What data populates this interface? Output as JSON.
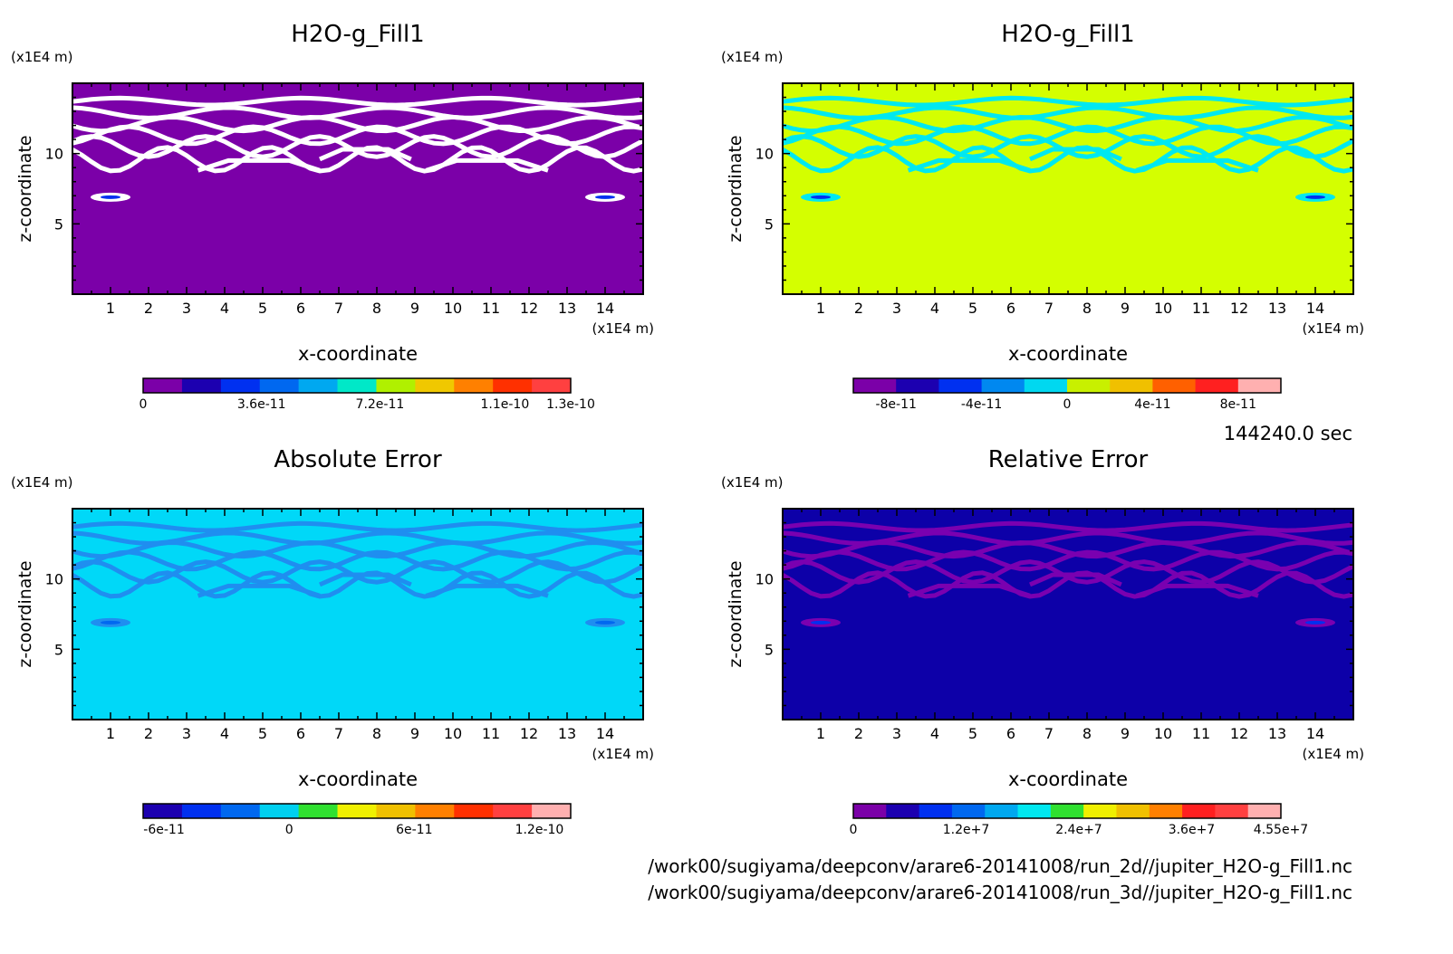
{
  "time_label": "144240.0 sec",
  "file_paths": [
    "/work00/sugiyama/deepconv/arare6-20141008/run_2d//jupiter_H2O-g_Fill1.nc",
    "/work00/sugiyama/deepconv/arare6-20141008/run_3d//jupiter_H2O-g_Fill1.nc"
  ],
  "chart_data": [
    {
      "type": "heatmap",
      "title": "H2O-g_Fill1",
      "xlabel": "x-coordinate",
      "ylabel": "z-coordinate",
      "x_unit": "(x1E4 m)",
      "y_unit": "(x1E4 m)",
      "xlim": [
        0,
        15
      ],
      "ylim": [
        0,
        15
      ],
      "x_ticks": [
        1,
        2,
        3,
        4,
        5,
        6,
        7,
        8,
        9,
        10,
        11,
        12,
        13,
        14
      ],
      "y_ticks": [
        5,
        10
      ],
      "background_color": "#7b00a8",
      "band_color": "#ffffff",
      "colorbar": {
        "colors": [
          "#7b00a8",
          "#1c00b0",
          "#0030f0",
          "#0068f0",
          "#00a8f0",
          "#00e8c8",
          "#b0f000",
          "#f0c800",
          "#ff8000",
          "#ff3000",
          "#ff4040"
        ],
        "tick_labels": [
          "0",
          "3.6e-11",
          "7.2e-11",
          "1.1e-10",
          "1.3e-10"
        ],
        "tick_values": [
          0,
          3.6e-11,
          7.2e-11,
          1.1e-10,
          1.3e-10
        ],
        "range": [
          0,
          1.3e-10
        ]
      }
    },
    {
      "type": "heatmap",
      "title": "H2O-g_Fill1",
      "xlabel": "x-coordinate",
      "ylabel": "z-coordinate",
      "x_unit": "(x1E4 m)",
      "y_unit": "(x1E4 m)",
      "xlim": [
        0,
        15
      ],
      "ylim": [
        0,
        15
      ],
      "x_ticks": [
        1,
        2,
        3,
        4,
        5,
        6,
        7,
        8,
        9,
        10,
        11,
        12,
        13,
        14
      ],
      "y_ticks": [
        5,
        10
      ],
      "background_color": "#d4ff00",
      "band_color": "#00e8f0",
      "colorbar": {
        "colors": [
          "#7b00a8",
          "#1c00b0",
          "#0030f0",
          "#0088f0",
          "#00d8f0",
          "#c8f000",
          "#f0c000",
          "#ff6000",
          "#ff2020",
          "#ffb0b0"
        ],
        "tick_labels": [
          "-8e-11",
          "-4e-11",
          "0",
          "4e-11",
          "8e-11"
        ],
        "tick_values": [
          -8e-11,
          -4e-11,
          0,
          4e-11,
          8e-11
        ],
        "range": [
          -1e-10,
          1e-10
        ]
      }
    },
    {
      "type": "heatmap",
      "title": "Absolute Error",
      "xlabel": "x-coordinate",
      "ylabel": "z-coordinate",
      "x_unit": "(x1E4 m)",
      "y_unit": "(x1E4 m)",
      "xlim": [
        0,
        15
      ],
      "ylim": [
        0,
        15
      ],
      "x_ticks": [
        1,
        2,
        3,
        4,
        5,
        6,
        7,
        8,
        9,
        10,
        11,
        12,
        13,
        14
      ],
      "y_ticks": [
        5,
        10
      ],
      "background_color": "#00d8f8",
      "band_color": "#1f8ef0",
      "colorbar": {
        "colors": [
          "#1c00b0",
          "#0030f0",
          "#0068f0",
          "#00d0f0",
          "#30e030",
          "#f0f000",
          "#f0c000",
          "#ff8000",
          "#ff3000",
          "#ff4040",
          "#ffb0b0"
        ],
        "tick_labels": [
          "-6e-11",
          "0",
          "6e-11",
          "1.2e-10"
        ],
        "tick_values": [
          -6e-11,
          0,
          6e-11,
          1.2e-10
        ],
        "range": [
          -7e-11,
          1.35e-10
        ]
      }
    },
    {
      "type": "heatmap",
      "title": "Relative Error",
      "xlabel": "x-coordinate",
      "ylabel": "z-coordinate",
      "x_unit": "(x1E4 m)",
      "y_unit": "(x1E4 m)",
      "xlim": [
        0,
        15
      ],
      "ylim": [
        0,
        15
      ],
      "x_ticks": [
        1,
        2,
        3,
        4,
        5,
        6,
        7,
        8,
        9,
        10,
        11,
        12,
        13,
        14
      ],
      "y_ticks": [
        5,
        10
      ],
      "background_color": "#0d00a8",
      "band_color": "#7a00b0",
      "colorbar": {
        "colors": [
          "#7b00a8",
          "#1c00b0",
          "#0030f0",
          "#0068f0",
          "#00a8f0",
          "#00e8f0",
          "#30e030",
          "#f0f000",
          "#f0c000",
          "#ff8000",
          "#ff2020",
          "#ff4040",
          "#ffb0b0"
        ],
        "tick_labels": [
          "0",
          "1.2e+7",
          "2.4e+7",
          "3.6e+7",
          "4.55e+7"
        ],
        "tick_values": [
          0,
          12000000.0,
          24000000.0,
          36000000.0,
          45500000.0
        ],
        "range": [
          0,
          45500000.0
        ]
      }
    }
  ]
}
